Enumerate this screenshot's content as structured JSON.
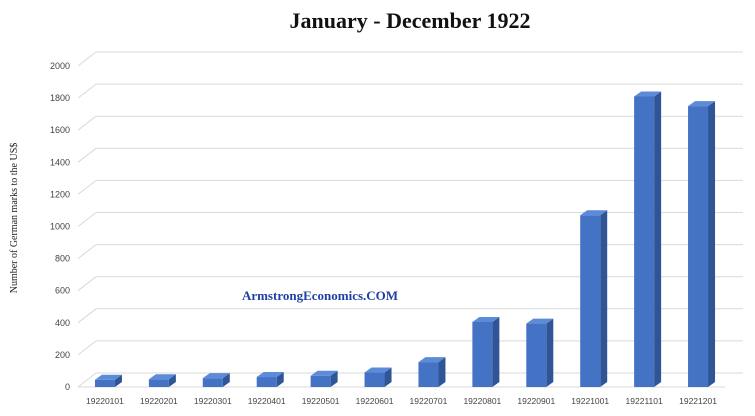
{
  "chart_data": {
    "type": "bar",
    "title": "January - December 1922",
    "xlabel": "",
    "ylabel": "Number of German marks to the US$",
    "ylim": [
      0,
      2000
    ],
    "yticks": [
      0,
      200,
      400,
      600,
      800,
      1000,
      1200,
      1400,
      1600,
      1800,
      2000
    ],
    "grid": true,
    "categories": [
      "19220101",
      "19220201",
      "19220301",
      "19220401",
      "19220501",
      "19220601",
      "19220701",
      "19220801",
      "19220901",
      "19221001",
      "19221101",
      "19221201"
    ],
    "values": [
      45,
      48,
      55,
      62,
      70,
      90,
      155,
      405,
      395,
      1070,
      1810,
      1750
    ],
    "annotation": "ArmstrongEconomics.COM"
  },
  "colors": {
    "bar_front": "#4472C4",
    "bar_side": "#2F5597",
    "bar_top": "#5B8BD9",
    "grid": "#D9D9D9",
    "watermark": "#1F3FA6"
  }
}
